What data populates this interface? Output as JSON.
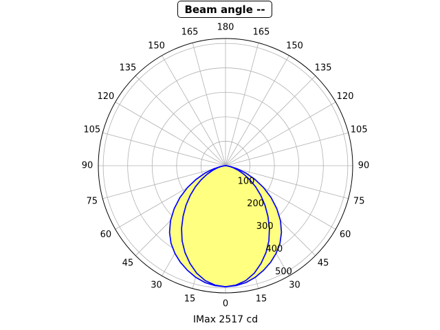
{
  "chart_data": {
    "type": "polar",
    "title": "Beam angle --",
    "xlabel": "IMax 2517 cd",
    "angle_tick_labels": [
      "0",
      "15",
      "30",
      "45",
      "60",
      "75",
      "90",
      "105",
      "120",
      "135",
      "150",
      "165",
      "180"
    ],
    "radial_ticks": [
      100,
      200,
      300,
      400,
      500
    ],
    "rlim": [
      0,
      520
    ],
    "grid": true,
    "angular_grid_step_deg": 15,
    "series": [
      {
        "color": "#0000ff",
        "fill": "#ffff80",
        "angles_deg": [
          0,
          5,
          10,
          15,
          20,
          25,
          30,
          35,
          40,
          45,
          50,
          55,
          60,
          65,
          70,
          75,
          80,
          85,
          90
        ],
        "values": [
          495,
          492,
          485,
          472,
          455,
          436,
          414,
          388,
          356,
          318,
          274,
          228,
          180,
          133,
          89,
          51,
          21,
          5,
          0
        ]
      },
      {
        "color": "#0000ff",
        "fill": "#ffff80",
        "angles_deg": [
          0,
          5,
          10,
          15,
          20,
          25,
          30,
          35,
          40,
          45,
          50,
          55,
          60,
          65,
          70,
          75,
          80,
          85,
          90
        ],
        "values": [
          495,
          490,
          477,
          455,
          425,
          392,
          355,
          313,
          270,
          228,
          188,
          150,
          115,
          83,
          56,
          33,
          16,
          5,
          0
        ]
      }
    ]
  }
}
